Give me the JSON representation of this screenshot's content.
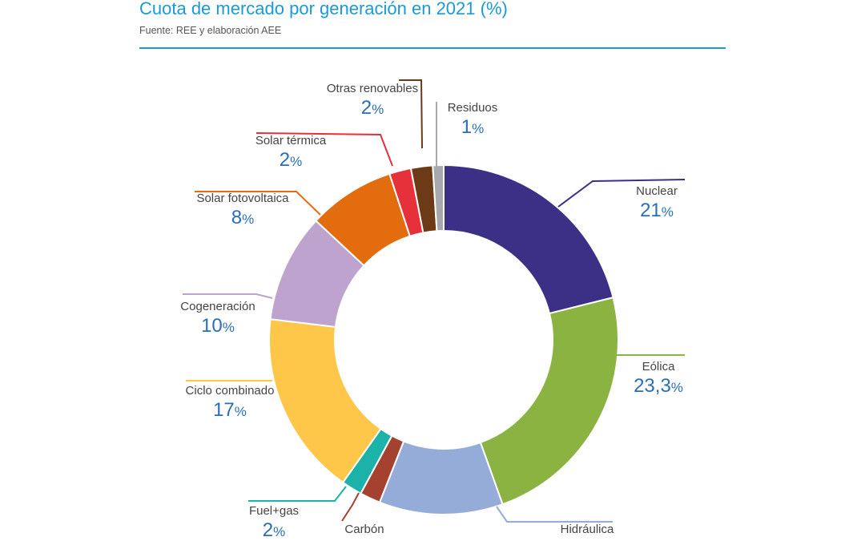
{
  "header": {
    "title": "Cuota de mercado por generación en 2021 (%)",
    "subtitle": "Fuente: REE y elaboración AEE"
  },
  "colors": {
    "accent": "#1a9ad6",
    "label_name": "#444444",
    "label_value": "#2a6eb5"
  },
  "chart_data": {
    "type": "pie",
    "variant": "donut",
    "title": "Cuota de mercado por generación en 2021 (%)",
    "unit": "%",
    "slices": [
      {
        "name": "Nuclear",
        "label": "21",
        "value": 21,
        "color": "#3b3086"
      },
      {
        "name": "Eólica",
        "label": "23,3",
        "value": 23.3,
        "color": "#8ab342"
      },
      {
        "name": "Hidráulica",
        "label": "",
        "value": 11.4,
        "color": "#95acd9"
      },
      {
        "name": "Carbón",
        "label": "",
        "value": 1.9,
        "color": "#a5412f"
      },
      {
        "name": "Fuel+gas",
        "label": "2",
        "value": 1.9,
        "color": "#1bb3a9"
      },
      {
        "name": "Ciclo combinado",
        "label": "17",
        "value": 17,
        "color": "#fec74a"
      },
      {
        "name": "Cogeneración",
        "label": "10",
        "value": 10,
        "color": "#bea3cf"
      },
      {
        "name": "Solar fotovoltaica",
        "label": "8",
        "value": 8,
        "color": "#e36c0e"
      },
      {
        "name": "Solar térmica",
        "label": "2",
        "value": 2,
        "color": "#e7313a"
      },
      {
        "name": "Otras renovables",
        "label": "2",
        "value": 2,
        "color": "#6d3a17"
      },
      {
        "name": "Residuos",
        "label": "1",
        "value": 1,
        "color": "#a7a8ab"
      }
    ]
  }
}
